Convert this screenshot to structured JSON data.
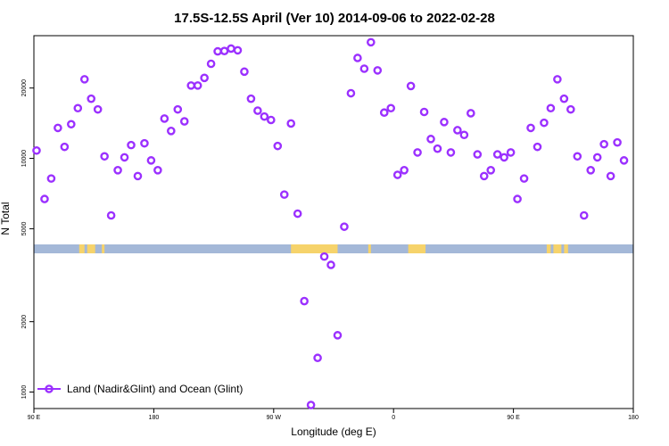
{
  "chart_data": {
    "type": "scatter",
    "title": "17.5S-12.5S April (Ver 10)   2014-09-06 to 2022-02-28",
    "xlabel": "Longitude (deg E)",
    "ylabel": "N Total",
    "x_ticks": [
      {
        "value": 90,
        "label": "90 E"
      },
      {
        "value": 180,
        "label": "180"
      },
      {
        "value": 270,
        "label": "90 W"
      },
      {
        "value": 360,
        "label": "0"
      },
      {
        "value": 450,
        "label": "90 E"
      },
      {
        "value": 540,
        "label": "180"
      }
    ],
    "y_ticks": [
      1000,
      2000,
      5000,
      10000,
      20000
    ],
    "xlim": [
      90,
      540
    ],
    "ylim": [
      850,
      33500
    ],
    "y_scale": "log",
    "grid": false,
    "legend_position": "bottom-left",
    "series": [
      {
        "name": "Land (Nadir&Glint) and Ocean (Glint)",
        "color": "#9b30ff",
        "marker": "open-circle",
        "points": [
          [
            92,
            10800
          ],
          [
            98,
            6700
          ],
          [
            103,
            8200
          ],
          [
            108,
            13500
          ],
          [
            113,
            11200
          ],
          [
            118,
            14000
          ],
          [
            123,
            16400
          ],
          [
            128,
            21800
          ],
          [
            133,
            18000
          ],
          [
            138,
            16200
          ],
          [
            143,
            10200
          ],
          [
            148,
            5700
          ],
          [
            153,
            8900
          ],
          [
            158,
            10100
          ],
          [
            163,
            11400
          ],
          [
            168,
            8400
          ],
          [
            173,
            11600
          ],
          [
            178,
            9800
          ],
          [
            183,
            8900
          ],
          [
            188,
            14800
          ],
          [
            193,
            13100
          ],
          [
            198,
            16200
          ],
          [
            203,
            14400
          ],
          [
            208,
            20500
          ],
          [
            213,
            20500
          ],
          [
            218,
            22100
          ],
          [
            223,
            25400
          ],
          [
            228,
            28700
          ],
          [
            233,
            28800
          ],
          [
            238,
            29500
          ],
          [
            243,
            29000
          ],
          [
            248,
            23500
          ],
          [
            253,
            18000
          ],
          [
            258,
            16000
          ],
          [
            263,
            15100
          ],
          [
            268,
            14600
          ],
          [
            273,
            11300
          ],
          [
            278,
            7000
          ],
          [
            283,
            14100
          ],
          [
            288,
            5800
          ],
          [
            293,
            2450
          ],
          [
            298,
            880
          ],
          [
            303,
            1400
          ],
          [
            308,
            3800
          ],
          [
            313,
            3500
          ],
          [
            318,
            1750
          ],
          [
            323,
            5100
          ],
          [
            328,
            19000
          ],
          [
            333,
            26900
          ],
          [
            338,
            24200
          ],
          [
            343,
            31400
          ],
          [
            348,
            23800
          ],
          [
            353,
            15700
          ],
          [
            358,
            16400
          ],
          [
            363,
            8500
          ],
          [
            368,
            8900
          ],
          [
            373,
            20400
          ],
          [
            378,
            10600
          ],
          [
            383,
            15800
          ],
          [
            388,
            12100
          ],
          [
            393,
            11000
          ],
          [
            398,
            14300
          ],
          [
            403,
            10600
          ],
          [
            408,
            13200
          ],
          [
            413,
            12600
          ],
          [
            418,
            15600
          ],
          [
            423,
            10400
          ],
          [
            428,
            8400
          ],
          [
            433,
            8900
          ],
          [
            438,
            10400
          ],
          [
            443,
            10100
          ],
          [
            448,
            10600
          ],
          [
            453,
            6700
          ],
          [
            458,
            8200
          ],
          [
            463,
            13500
          ],
          [
            468,
            11200
          ],
          [
            473,
            14200
          ],
          [
            478,
            16400
          ],
          [
            483,
            21800
          ],
          [
            488,
            18000
          ],
          [
            493,
            16200
          ],
          [
            498,
            10200
          ],
          [
            503,
            5700
          ],
          [
            508,
            8900
          ],
          [
            513,
            10100
          ],
          [
            518,
            11500
          ],
          [
            523,
            8400
          ],
          [
            528,
            11700
          ],
          [
            533,
            9800
          ]
        ]
      }
    ],
    "land_mask_segments": [
      [
        124,
        128
      ],
      [
        130,
        136
      ],
      [
        141,
        143
      ],
      [
        283,
        318
      ],
      [
        341,
        343
      ],
      [
        371,
        384
      ],
      [
        475,
        478
      ],
      [
        480,
        486
      ],
      [
        488,
        491
      ]
    ],
    "colors": {
      "ocean": "#a4b8d8",
      "land": "#f6d36b",
      "marker": "#9b30ff"
    }
  }
}
